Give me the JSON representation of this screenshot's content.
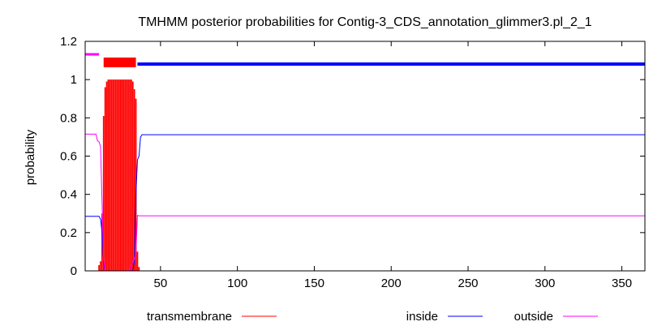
{
  "chart_data": {
    "type": "line",
    "title": "TMHMM posterior probabilities for Contig-3_CDS_annotation_glimmer3.pl_2_1",
    "xlabel": "",
    "ylabel": "probability",
    "xlim": [
      1,
      365
    ],
    "ylim": [
      0,
      1.2
    ],
    "x_ticks": [
      50,
      100,
      150,
      200,
      250,
      300,
      350
    ],
    "y_ticks": [
      0,
      0.2,
      0.4,
      0.6,
      0.8,
      1,
      1.2
    ],
    "x_tick_labels": [
      "50",
      "100",
      "150",
      "200",
      "250",
      "300",
      "350"
    ],
    "y_tick_labels": [
      "0",
      "0.2",
      "0.4",
      "0.6",
      "0.8",
      "1",
      "1.2"
    ],
    "grid": false,
    "legend_position": "bottom",
    "series": [
      {
        "name": "transmembrane",
        "color": "#ff0000",
        "style": "impulses",
        "points": [
          [
            10,
            0.03
          ],
          [
            11,
            0.05
          ],
          [
            12,
            0.3
          ],
          [
            13,
            0.81
          ],
          [
            14,
            0.96
          ],
          [
            15,
            0.99
          ],
          [
            16,
            1.0
          ],
          [
            17,
            1.0
          ],
          [
            18,
            1.0
          ],
          [
            19,
            1.0
          ],
          [
            20,
            1.0
          ],
          [
            21,
            1.0
          ],
          [
            22,
            1.0
          ],
          [
            23,
            1.0
          ],
          [
            24,
            1.0
          ],
          [
            25,
            1.0
          ],
          [
            26,
            1.0
          ],
          [
            27,
            1.0
          ],
          [
            28,
            1.0
          ],
          [
            29,
            1.0
          ],
          [
            30,
            1.0
          ],
          [
            31,
            1.0
          ],
          [
            32,
            0.99
          ],
          [
            33,
            0.95
          ],
          [
            34,
            0.9
          ],
          [
            35,
            0.1
          ],
          [
            36,
            0.02
          ]
        ]
      },
      {
        "name": "inside",
        "color": "#0000ff",
        "style": "line",
        "points": [
          [
            1,
            0.285
          ],
          [
            10,
            0.285
          ],
          [
            11,
            0.27
          ],
          [
            12,
            0.2
          ],
          [
            13,
            0.04
          ],
          [
            14,
            0.0
          ],
          [
            32,
            0.0
          ],
          [
            33,
            0.05
          ],
          [
            34,
            0.4
          ],
          [
            35,
            0.58
          ],
          [
            36,
            0.6
          ],
          [
            37,
            0.7
          ],
          [
            38,
            0.712
          ],
          [
            365,
            0.712
          ]
        ]
      },
      {
        "name": "outside",
        "color": "#ff00ff",
        "style": "line",
        "points": [
          [
            1,
            0.715
          ],
          [
            8,
            0.715
          ],
          [
            9,
            0.68
          ],
          [
            10,
            0.675
          ],
          [
            11,
            0.65
          ],
          [
            12,
            0.35
          ],
          [
            13,
            0.06
          ],
          [
            14,
            0.0
          ],
          [
            28,
            0.0
          ],
          [
            30,
            0.01
          ],
          [
            31,
            0.03
          ],
          [
            32,
            0.05
          ],
          [
            33,
            0.06
          ],
          [
            34,
            0.1
          ],
          [
            35,
            0.29
          ],
          [
            36,
            0.288
          ],
          [
            365,
            0.288
          ]
        ]
      }
    ],
    "topology": {
      "y": 1.09,
      "segments": [
        {
          "region": "outside",
          "start": 1,
          "end": 10,
          "color": "#ff00ff"
        },
        {
          "region": "transmembrane",
          "start": 13,
          "end": 34,
          "color": "#ff0000"
        },
        {
          "region": "inside",
          "start": 35,
          "end": 365,
          "color": "#0000ff"
        }
      ]
    }
  }
}
